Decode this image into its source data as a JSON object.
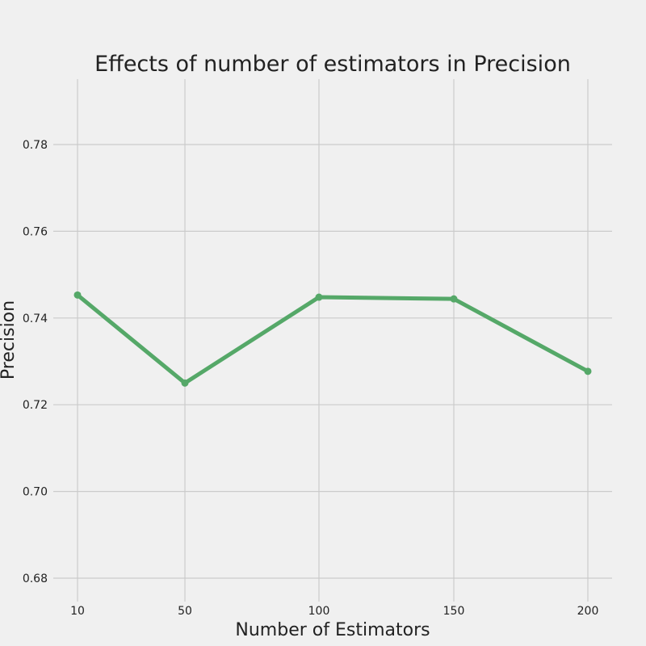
{
  "chart_data": {
    "type": "line",
    "title": "Effects of number of estimators in Precision",
    "xlabel": "Number of Estimators",
    "ylabel": "Precision",
    "x": [
      10,
      50,
      100,
      150,
      200
    ],
    "x_tick_labels": [
      "10",
      "50",
      "100",
      "150",
      "200"
    ],
    "y_ticks": [
      0.68,
      0.7,
      0.72,
      0.74,
      0.76,
      0.78
    ],
    "y_tick_labels": [
      "0.68",
      "0.70",
      "0.72",
      "0.74",
      "0.76",
      "0.78"
    ],
    "ylim": [
      0.675,
      0.7945
    ],
    "grid": true,
    "series": [
      {
        "values": [
          0.7453,
          0.725,
          0.7448,
          0.7444,
          0.7277
        ],
        "color": "#55a868"
      }
    ]
  }
}
